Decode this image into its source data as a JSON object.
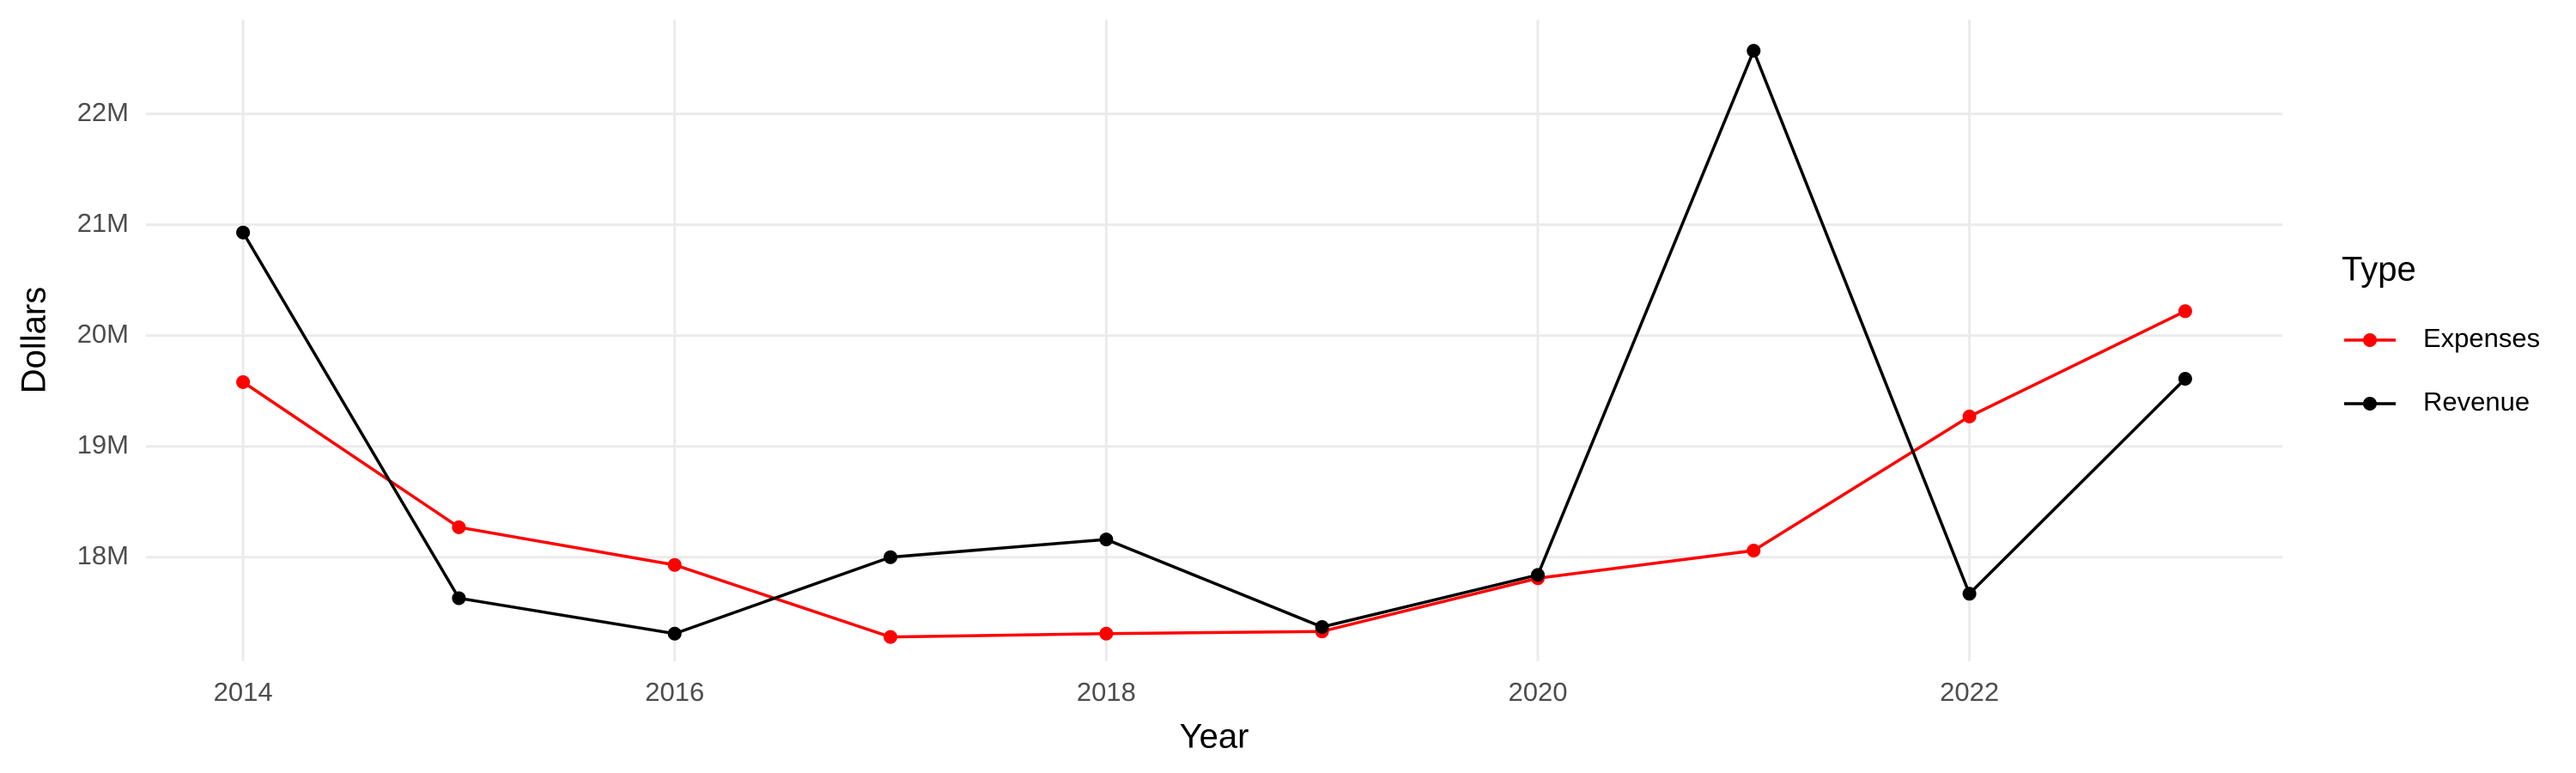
{
  "chart_data": {
    "type": "line",
    "x_label": "Year",
    "y_label": "Dollars",
    "legend_title": "Type",
    "legend_position": "right",
    "grid": true,
    "x": [
      2014,
      2015,
      2016,
      2017,
      2018,
      2019,
      2020,
      2021,
      2022,
      2023
    ],
    "series": [
      {
        "name": "Expenses",
        "color": "#ff0000",
        "values": [
          19580000,
          18270000,
          17930000,
          17280000,
          17310000,
          17330000,
          17810000,
          18060000,
          19270000,
          20220000
        ]
      },
      {
        "name": "Revenue",
        "color": "#000000",
        "values": [
          20930000,
          17630000,
          17310000,
          18000000,
          18160000,
          17370000,
          17840000,
          22570000,
          17670000,
          19610000
        ]
      }
    ],
    "xlim": [
      2013.55,
      2023.45
    ],
    "xticks": [
      2014,
      2016,
      2018,
      2020,
      2022
    ],
    "ylim": [
      17060000,
      22850000
    ],
    "yticks": [
      {
        "value": 18000000,
        "label": "18M"
      },
      {
        "value": 19000000,
        "label": "19M"
      },
      {
        "value": 20000000,
        "label": "20M"
      },
      {
        "value": 21000000,
        "label": "21M"
      },
      {
        "value": 22000000,
        "label": "22M"
      }
    ]
  }
}
